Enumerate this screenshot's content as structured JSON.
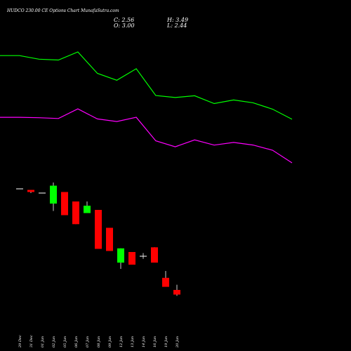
{
  "chart_data": {
    "type": "candlestick",
    "title": "HUDCO 230.00 CE Options Chart MunafaSutra.com",
    "stats": {
      "close": "C: 2.56",
      "high": "H: 3.49",
      "open": "O: 3.00",
      "low": "L: 2.44"
    },
    "colors": {
      "up": "#00ff00",
      "down": "#ff0000",
      "flat": "#ffffff",
      "line1": "#00ff00",
      "line2": "#ff00ff",
      "background": "#000000"
    },
    "price_ylim": [
      2.2,
      13.2
    ],
    "candles": [
      {
        "date": "29 Dec",
        "open": 12.6,
        "high": 12.6,
        "low": 12.6,
        "close": 12.6
      },
      {
        "date": "31 Dec",
        "open": 12.5,
        "high": 12.5,
        "low": 12.2,
        "close": 12.3
      },
      {
        "date": "01 Jan",
        "open": 12.2,
        "high": 12.2,
        "low": 12.2,
        "close": 12.2
      },
      {
        "date": "02 Jan",
        "open": 11.2,
        "high": 13.2,
        "low": 10.5,
        "close": 12.9
      },
      {
        "date": "05 Jan",
        "open": 12.3,
        "high": 12.3,
        "low": 10.1,
        "close": 10.1
      },
      {
        "date": "06 Jan",
        "open": 11.4,
        "high": 11.4,
        "low": 9.25,
        "close": 9.25
      },
      {
        "date": "07 Jan",
        "open": 10.3,
        "high": 11.4,
        "low": 10.3,
        "close": 11.0
      },
      {
        "date": "08 Jan",
        "open": 10.6,
        "high": 10.6,
        "low": 6.9,
        "close": 6.9
      },
      {
        "date": "09 Jan",
        "open": 8.9,
        "high": 8.9,
        "low": 6.7,
        "close": 6.7
      },
      {
        "date": "12 Jan",
        "open": 5.6,
        "high": 6.95,
        "low": 5.0,
        "close": 6.95
      },
      {
        "date": "13 Jan",
        "open": 6.6,
        "high": 6.6,
        "low": 5.4,
        "close": 5.4
      },
      {
        "date": "14 Jan",
        "open": 6.2,
        "high": 6.5,
        "low": 5.95,
        "close": 6.2
      },
      {
        "date": "16 Jan",
        "open": 7.05,
        "high": 7.05,
        "low": 5.6,
        "close": 5.6
      },
      {
        "date": "19 Jan",
        "open": 4.15,
        "high": 4.8,
        "low": 3.3,
        "close": 3.3
      },
      {
        "date": "20 Jan",
        "open": 3.0,
        "high": 3.49,
        "low": 2.44,
        "close": 2.56
      }
    ],
    "line_ylim": [
      0,
      100
    ],
    "series": [
      {
        "color": "#00ff00",
        "values": [
          96.7,
          96.7,
          93.5,
          92.7,
          100,
          80.7,
          74.5,
          84.9,
          60.7,
          58.9,
          60.5,
          53.5,
          56.7,
          54.2,
          48.4,
          39.3
        ]
      },
      {
        "color": "#ff00ff",
        "values": [
          41.1,
          41.1,
          40.7,
          40.0,
          48.7,
          39.6,
          37.3,
          41.1,
          19.9,
          14.5,
          20.7,
          16.0,
          18.4,
          16.1,
          11.4,
          0
        ]
      }
    ]
  }
}
